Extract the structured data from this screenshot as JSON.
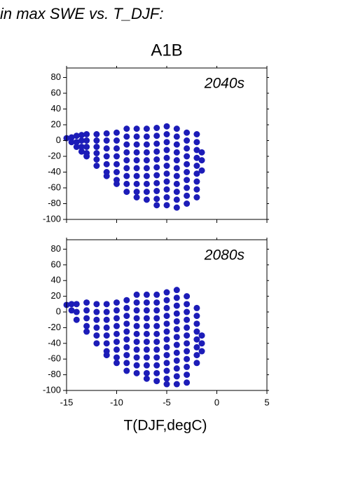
{
  "heading": "in max SWE vs. T_DJF:",
  "chart_data": [
    {
      "type": "scatter",
      "title": "A1B",
      "annotation": "2040s",
      "color": "#1c1cb8",
      "xlim": [
        -15,
        5
      ],
      "xticks": [
        -15,
        -10,
        -5,
        0,
        5
      ],
      "ylim": [
        -100,
        92
      ],
      "yticks": [
        -100,
        -80,
        -60,
        -40,
        -20,
        0,
        20,
        40,
        60,
        80
      ],
      "x": [
        -15,
        -14.5,
        -14.5,
        -14,
        -14,
        -14,
        -13.5,
        -13.5,
        -13.5,
        -13.5,
        -13,
        -13,
        -13,
        -13,
        -13,
        -12,
        -12,
        -12,
        -12,
        -12,
        -12,
        -11,
        -11,
        -11,
        -11,
        -11,
        -11,
        -11,
        -10,
        -10,
        -10,
        -10,
        -10,
        -10,
        -10,
        -10,
        -9,
        -9,
        -9,
        -9,
        -9,
        -9,
        -9,
        -9,
        -9,
        -8,
        -8,
        -8,
        -8,
        -8,
        -8,
        -8,
        -8,
        -8,
        -8,
        -7,
        -7,
        -7,
        -7,
        -7,
        -7,
        -7,
        -7,
        -7,
        -7,
        -6,
        -6,
        -6,
        -6,
        -6,
        -6,
        -6,
        -6,
        -6,
        -6,
        -6,
        -5,
        -5,
        -5,
        -5,
        -5,
        -5,
        -5,
        -5,
        -5,
        -5,
        -5,
        -4,
        -4,
        -4,
        -4,
        -4,
        -4,
        -4,
        -4,
        -4,
        -4,
        -4,
        -3,
        -3,
        -3,
        -3,
        -3,
        -3,
        -3,
        -3,
        -3,
        -3,
        -2,
        -2,
        -2,
        -2,
        -2,
        -2,
        -2,
        -2,
        -2,
        -1.5,
        -1.5,
        -1.5
      ],
      "y": [
        3,
        4,
        -2,
        6,
        -2,
        -8,
        7,
        0,
        -8,
        -14,
        8,
        0,
        -8,
        -16,
        -20,
        8,
        0,
        -8,
        -16,
        -24,
        -32,
        9,
        0,
        -10,
        -20,
        -30,
        -40,
        -45,
        10,
        0,
        -10,
        -20,
        -30,
        -40,
        -50,
        -55,
        15,
        5,
        -5,
        -15,
        -25,
        -35,
        -45,
        -55,
        -65,
        15,
        5,
        -5,
        -15,
        -25,
        -35,
        -45,
        -55,
        -65,
        -72,
        15,
        5,
        -5,
        -15,
        -25,
        -35,
        -45,
        -55,
        -65,
        -75,
        16,
        6,
        -4,
        -14,
        -24,
        -34,
        -44,
        -54,
        -64,
        -74,
        -82,
        18,
        8,
        -2,
        -12,
        -22,
        -32,
        -42,
        -52,
        -62,
        -72,
        -82,
        15,
        5,
        -5,
        -15,
        -25,
        -35,
        -45,
        -55,
        -65,
        -75,
        -85,
        10,
        0,
        -10,
        -20,
        -30,
        -40,
        -50,
        -60,
        -70,
        -80,
        8,
        -2,
        -12,
        -22,
        -32,
        -42,
        -52,
        -62,
        -72,
        -15,
        -25,
        -38
      ]
    },
    {
      "type": "scatter",
      "annotation": "2080s",
      "color": "#1c1cb8",
      "xlabel": "T(DJF,degC)",
      "xlim": [
        -15,
        5
      ],
      "xticks": [
        -15,
        -10,
        -5,
        0,
        5
      ],
      "ylim": [
        -100,
        92
      ],
      "yticks": [
        -100,
        -80,
        -60,
        -40,
        -20,
        0,
        20,
        40,
        60,
        80
      ],
      "x": [
        -15,
        -14.5,
        -14.5,
        -14,
        -14,
        -14,
        -13,
        -13,
        -13,
        -13,
        -13,
        -12,
        -12,
        -12,
        -12,
        -12,
        -12,
        -11,
        -11,
        -11,
        -11,
        -11,
        -11,
        -11,
        -11,
        -10,
        -10,
        -10,
        -10,
        -10,
        -10,
        -10,
        -10,
        -10,
        -9,
        -9,
        -9,
        -9,
        -9,
        -9,
        -9,
        -9,
        -9,
        -9,
        -8,
        -8,
        -8,
        -8,
        -8,
        -8,
        -8,
        -8,
        -8,
        -8,
        -8,
        -7,
        -7,
        -7,
        -7,
        -7,
        -7,
        -7,
        -7,
        -7,
        -7,
        -7,
        -7,
        -6,
        -6,
        -6,
        -6,
        -6,
        -6,
        -6,
        -6,
        -6,
        -6,
        -6,
        -6,
        -5,
        -5,
        -5,
        -5,
        -5,
        -5,
        -5,
        -5,
        -5,
        -5,
        -5,
        -5,
        -5,
        -4,
        -4,
        -4,
        -4,
        -4,
        -4,
        -4,
        -4,
        -4,
        -4,
        -4,
        -4,
        -4,
        -3,
        -3,
        -3,
        -3,
        -3,
        -3,
        -3,
        -3,
        -3,
        -3,
        -3,
        -3,
        -2,
        -2,
        -2,
        -2,
        -2,
        -2,
        -2,
        -2,
        -1.5,
        -1.5,
        -1.5
      ],
      "y": [
        9,
        10,
        2,
        10,
        0,
        -10,
        12,
        2,
        -8,
        -18,
        -25,
        10,
        0,
        -10,
        -20,
        -30,
        -40,
        10,
        0,
        -10,
        -20,
        -30,
        -40,
        -50,
        -55,
        12,
        2,
        -8,
        -18,
        -28,
        -38,
        -48,
        -58,
        -65,
        15,
        5,
        -5,
        -15,
        -25,
        -35,
        -45,
        -55,
        -65,
        -75,
        22,
        12,
        2,
        -8,
        -18,
        -28,
        -38,
        -48,
        -58,
        -68,
        -78,
        22,
        12,
        2,
        -8,
        -18,
        -28,
        -38,
        -48,
        -58,
        -68,
        -78,
        -85,
        22,
        12,
        2,
        -8,
        -18,
        -28,
        -38,
        -48,
        -58,
        -68,
        -78,
        -88,
        25,
        15,
        5,
        -5,
        -15,
        -25,
        -35,
        -45,
        -55,
        -65,
        -75,
        -85,
        -92,
        28,
        18,
        8,
        -2,
        -12,
        -22,
        -32,
        -42,
        -52,
        -62,
        -72,
        -82,
        -92,
        20,
        10,
        0,
        -10,
        -20,
        -30,
        -40,
        -50,
        -60,
        -70,
        -80,
        -90,
        5,
        -5,
        -15,
        -25,
        -35,
        -45,
        -55,
        -65,
        -30,
        -40,
        -50
      ]
    }
  ]
}
